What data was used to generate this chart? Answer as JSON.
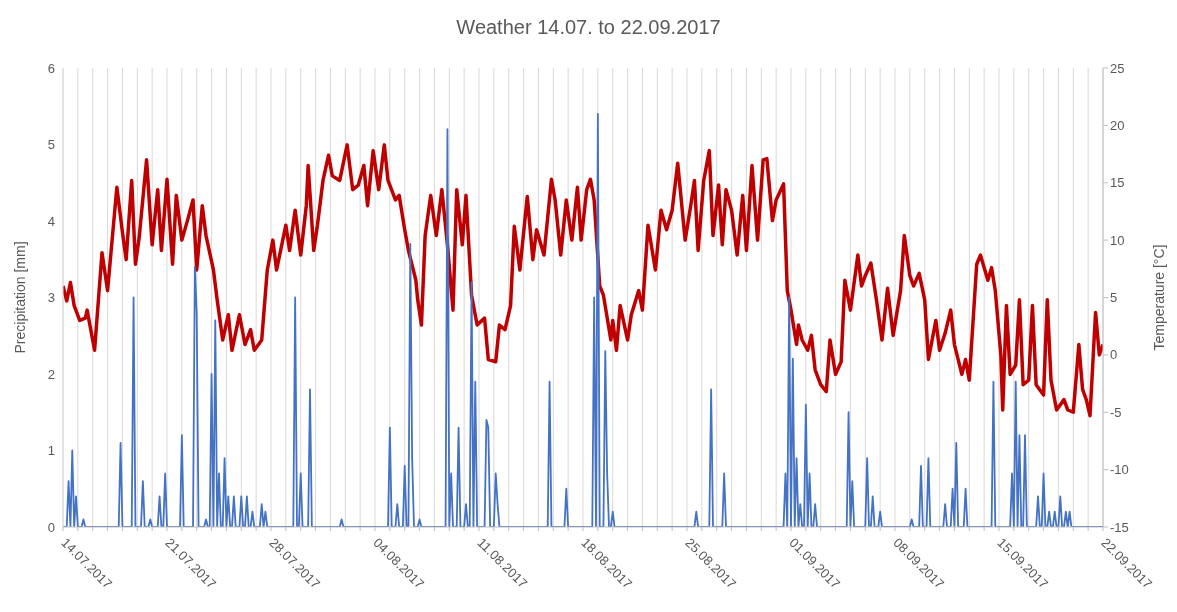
{
  "chart_data": {
    "type": "line",
    "title": "Weather 14.07. to 22.09.2017",
    "ylabel": "Precipitation [mm]",
    "y2label": "Temperature [°C]",
    "xlim": [
      "2017-07-14",
      "2017-09-22"
    ],
    "xticks": [
      {
        "value": "2017-07-14",
        "label": "14.07.2017"
      },
      {
        "value": "2017-07-15",
        "label": null
      },
      {
        "value": "2017-07-16",
        "label": null
      },
      {
        "value": "2017-07-17",
        "label": null
      },
      {
        "value": "2017-07-18",
        "label": null
      },
      {
        "value": "2017-07-19",
        "label": null
      },
      {
        "value": "2017-07-20",
        "label": null
      },
      {
        "value": "2017-07-21",
        "label": "21.07.2017"
      },
      {
        "value": "2017-07-22",
        "label": null
      },
      {
        "value": "2017-07-23",
        "label": null
      },
      {
        "value": "2017-07-24",
        "label": null
      },
      {
        "value": "2017-07-25",
        "label": null
      },
      {
        "value": "2017-07-26",
        "label": null
      },
      {
        "value": "2017-07-27",
        "label": null
      },
      {
        "value": "2017-07-28",
        "label": "28.07.2017"
      },
      {
        "value": "2017-07-29",
        "label": null
      },
      {
        "value": "2017-07-30",
        "label": null
      },
      {
        "value": "2017-07-31",
        "label": null
      },
      {
        "value": "2017-08-01",
        "label": null
      },
      {
        "value": "2017-08-02",
        "label": null
      },
      {
        "value": "2017-08-03",
        "label": null
      },
      {
        "value": "2017-08-04",
        "label": "04.08.2017"
      },
      {
        "value": "2017-08-05",
        "label": null
      },
      {
        "value": "2017-08-06",
        "label": null
      },
      {
        "value": "2017-08-07",
        "label": null
      },
      {
        "value": "2017-08-08",
        "label": null
      },
      {
        "value": "2017-08-09",
        "label": null
      },
      {
        "value": "2017-08-10",
        "label": null
      },
      {
        "value": "2017-08-11",
        "label": "11.08.2017"
      },
      {
        "value": "2017-08-12",
        "label": null
      },
      {
        "value": "2017-08-13",
        "label": null
      },
      {
        "value": "2017-08-14",
        "label": null
      },
      {
        "value": "2017-08-15",
        "label": null
      },
      {
        "value": "2017-08-16",
        "label": null
      },
      {
        "value": "2017-08-17",
        "label": null
      },
      {
        "value": "2017-08-18",
        "label": "18.08.2017"
      },
      {
        "value": "2017-08-19",
        "label": null
      },
      {
        "value": "2017-08-20",
        "label": null
      },
      {
        "value": "2017-08-21",
        "label": null
      },
      {
        "value": "2017-08-22",
        "label": null
      },
      {
        "value": "2017-08-23",
        "label": null
      },
      {
        "value": "2017-08-24",
        "label": null
      },
      {
        "value": "2017-08-25",
        "label": "25.08.2017"
      },
      {
        "value": "2017-08-26",
        "label": null
      },
      {
        "value": "2017-08-27",
        "label": null
      },
      {
        "value": "2017-08-28",
        "label": null
      },
      {
        "value": "2017-08-29",
        "label": null
      },
      {
        "value": "2017-08-30",
        "label": null
      },
      {
        "value": "2017-08-31",
        "label": null
      },
      {
        "value": "2017-09-01",
        "label": "01.09.2017"
      },
      {
        "value": "2017-09-02",
        "label": null
      },
      {
        "value": "2017-09-03",
        "label": null
      },
      {
        "value": "2017-09-04",
        "label": null
      },
      {
        "value": "2017-09-05",
        "label": null
      },
      {
        "value": "2017-09-06",
        "label": null
      },
      {
        "value": "2017-09-07",
        "label": null
      },
      {
        "value": "2017-09-08",
        "label": "08.09.2017"
      },
      {
        "value": "2017-09-09",
        "label": null
      },
      {
        "value": "2017-09-10",
        "label": null
      },
      {
        "value": "2017-09-11",
        "label": null
      },
      {
        "value": "2017-09-12",
        "label": null
      },
      {
        "value": "2017-09-13",
        "label": null
      },
      {
        "value": "2017-09-14",
        "label": null
      },
      {
        "value": "2017-09-15",
        "label": "15.09.2017"
      },
      {
        "value": "2017-09-16",
        "label": null
      },
      {
        "value": "2017-09-17",
        "label": null
      },
      {
        "value": "2017-09-18",
        "label": null
      },
      {
        "value": "2017-09-19",
        "label": null
      },
      {
        "value": "2017-09-20",
        "label": null
      },
      {
        "value": "2017-09-21",
        "label": null
      },
      {
        "value": "2017-09-22",
        "label": "22.09.2017"
      }
    ],
    "ylim": [
      0,
      6
    ],
    "yticks": [
      0,
      1,
      2,
      3,
      4,
      5,
      6
    ],
    "y2lim": [
      -15,
      25
    ],
    "y2ticks": [
      -15,
      -10,
      -5,
      0,
      5,
      10,
      15,
      20,
      25
    ],
    "grid": "x",
    "series": [
      {
        "color": "#c00000",
        "axis": "y2",
        "x": [
          "2017-07-14T00:00",
          "2017-07-14T06:00",
          "2017-07-14T12:00",
          "2017-07-14T18:00",
          "2017-07-15T03:00",
          "2017-07-15T12:00",
          "2017-07-15T15:00",
          "2017-07-16T03:00",
          "2017-07-16T15:00",
          "2017-07-17T00:00",
          "2017-07-17T15:00",
          "2017-07-18T00:00",
          "2017-07-18T06:00",
          "2017-07-18T15:00",
          "2017-07-18T21:00",
          "2017-07-19T03:00",
          "2017-07-19T15:00",
          "2017-07-20T00:00",
          "2017-07-20T09:00",
          "2017-07-20T15:00",
          "2017-07-21T00:00",
          "2017-07-21T09:00",
          "2017-07-21T15:00",
          "2017-07-22T00:00",
          "2017-07-22T09:00",
          "2017-07-22T18:00",
          "2017-07-23T00:00",
          "2017-07-23T09:00",
          "2017-07-23T15:00",
          "2017-07-24T03:00",
          "2017-07-24T09:00",
          "2017-07-24T18:00",
          "2017-07-25T03:00",
          "2017-07-25T09:00",
          "2017-07-25T21:00",
          "2017-07-26T06:00",
          "2017-07-26T15:00",
          "2017-07-26T21:00",
          "2017-07-27T09:00",
          "2017-07-27T18:00",
          "2017-07-28T03:00",
          "2017-07-28T09:00",
          "2017-07-29T00:00",
          "2017-07-29T06:00",
          "2017-07-29T15:00",
          "2017-07-30T00:00",
          "2017-07-30T09:00",
          "2017-07-30T12:00",
          "2017-07-30T21:00",
          "2017-07-31T03:00",
          "2017-07-31T12:00",
          "2017-07-31T21:00",
          "2017-08-01T03:00",
          "2017-08-01T15:00",
          "2017-08-02T03:00",
          "2017-08-02T12:00",
          "2017-08-02T21:00",
          "2017-08-03T06:00",
          "2017-08-03T12:00",
          "2017-08-03T21:00",
          "2017-08-04T06:00",
          "2017-08-04T15:00",
          "2017-08-04T21:00",
          "2017-08-05T09:00",
          "2017-08-05T15:00",
          "2017-08-06T00:00",
          "2017-08-06T06:00",
          "2017-08-06T18:00",
          "2017-08-06T21:00",
          "2017-08-07T03:00",
          "2017-08-07T09:00",
          "2017-08-07T18:00",
          "2017-08-08T03:00",
          "2017-08-08T12:00",
          "2017-08-08T21:00",
          "2017-08-09T06:00",
          "2017-08-09T12:00",
          "2017-08-09T21:00",
          "2017-08-10T03:00",
          "2017-08-10T12:00",
          "2017-08-10T21:00",
          "2017-08-11T09:00",
          "2017-08-11T15:00",
          "2017-08-12T03:00",
          "2017-08-12T09:00",
          "2017-08-12T18:00",
          "2017-08-13T03:00",
          "2017-08-13T09:00",
          "2017-08-13T18:00",
          "2017-08-14T06:00",
          "2017-08-14T15:00",
          "2017-08-14T21:00",
          "2017-08-15T09:00",
          "2017-08-15T21:00",
          "2017-08-16T03:00",
          "2017-08-16T12:00",
          "2017-08-16T21:00",
          "2017-08-17T06:00",
          "2017-08-17T15:00",
          "2017-08-17T21:00",
          "2017-08-18T06:00",
          "2017-08-18T12:00",
          "2017-08-18T18:00",
          "2017-08-19T03:00",
          "2017-08-19T09:00",
          "2017-08-19T21:00",
          "2017-08-20T00:00",
          "2017-08-20T06:00",
          "2017-08-20T12:00",
          "2017-08-21T00:00",
          "2017-08-21T06:00",
          "2017-08-21T18:00",
          "2017-08-22T00:00",
          "2017-08-22T09:00",
          "2017-08-22T21:00",
          "2017-08-23T06:00",
          "2017-08-23T15:00",
          "2017-08-24T00:00",
          "2017-08-24T09:00",
          "2017-08-24T21:00",
          "2017-08-25T06:00",
          "2017-08-25T12:00",
          "2017-08-25T18:00",
          "2017-08-26T03:00",
          "2017-08-26T12:00",
          "2017-08-26T18:00",
          "2017-08-27T03:00",
          "2017-08-27T09:00",
          "2017-08-27T15:00",
          "2017-08-28T00:00",
          "2017-08-28T09:00",
          "2017-08-28T18:00",
          "2017-08-29T00:00",
          "2017-08-29T09:00",
          "2017-08-29T18:00",
          "2017-08-30T03:00",
          "2017-08-30T09:00",
          "2017-08-30T18:00",
          "2017-08-31T00:00",
          "2017-08-31T12:00",
          "2017-08-31T18:00",
          "2017-09-01T00:00",
          "2017-09-01T09:00",
          "2017-09-01T12:00",
          "2017-09-01T18:00",
          "2017-09-02T03:00",
          "2017-09-02T09:00",
          "2017-09-02T15:00",
          "2017-09-03T00:00",
          "2017-09-03T09:00",
          "2017-09-03T15:00",
          "2017-09-04T00:00",
          "2017-09-04T09:00",
          "2017-09-04T15:00",
          "2017-09-05T00:00",
          "2017-09-05T12:00",
          "2017-09-05T18:00",
          "2017-09-06T00:00",
          "2017-09-06T09:00",
          "2017-09-06T18:00",
          "2017-09-07T03:00",
          "2017-09-07T12:00",
          "2017-09-07T21:00",
          "2017-09-08T09:00",
          "2017-09-08T15:00",
          "2017-09-09T00:00",
          "2017-09-09T06:00",
          "2017-09-09T15:00",
          "2017-09-10T00:00",
          "2017-09-10T06:00",
          "2017-09-10T18:00",
          "2017-09-11T00:00",
          "2017-09-11T09:00",
          "2017-09-11T18:00",
          "2017-09-12T00:00",
          "2017-09-12T12:00",
          "2017-09-12T18:00",
          "2017-09-13T00:00",
          "2017-09-13T12:00",
          "2017-09-13T18:00",
          "2017-09-14T06:00",
          "2017-09-14T12:00",
          "2017-09-14T18:00",
          "2017-09-15T03:00",
          "2017-09-15T06:00",
          "2017-09-15T12:00",
          "2017-09-15T18:00",
          "2017-09-16T03:00",
          "2017-09-16T09:00",
          "2017-09-16T15:00",
          "2017-09-17T00:00",
          "2017-09-17T06:00",
          "2017-09-17T12:00",
          "2017-09-18T00:00",
          "2017-09-18T06:00",
          "2017-09-18T12:00",
          "2017-09-18T21:00",
          "2017-09-19T09:00",
          "2017-09-19T15:00",
          "2017-09-20T00:00",
          "2017-09-20T09:00",
          "2017-09-20T15:00",
          "2017-09-20T21:00",
          "2017-09-21T03:00",
          "2017-09-21T12:00",
          "2017-09-21T18:00",
          "2017-09-22T00:00"
        ],
        "values": [
          6.0,
          4.7,
          6.3,
          4.3,
          3.0,
          3.2,
          3.9,
          0.4,
          8.9,
          5.6,
          14.6,
          10.7,
          8.3,
          15.2,
          7.9,
          10.2,
          17.0,
          9.6,
          14.4,
          9.1,
          15.3,
          7.9,
          13.9,
          10,
          11.7,
          13.5,
          7.4,
          13,
          10.4,
          7.4,
          4.8,
          1.3,
          3.5,
          0.4,
          3.5,
          0.9,
          2.2,
          0.4,
          1.3,
          7.4,
          10,
          7.4,
          11.3,
          9.1,
          12.6,
          8.7,
          13,
          16.5,
          9.1,
          11.3,
          15.2,
          17.4,
          15.6,
          15.2,
          18.3,
          14.4,
          14.8,
          16.5,
          13,
          17.8,
          14.4,
          18.3,
          15.2,
          13.5,
          13.9,
          10.9,
          9.1,
          6.5,
          4.8,
          2.6,
          10.4,
          13.9,
          10.4,
          14.4,
          9.6,
          3.9,
          14.4,
          9.6,
          13.9,
          5.2,
          2.6,
          3.2,
          -0.4,
          -0.6,
          2.6,
          2.2,
          4.3,
          11.2,
          7.4,
          13.8,
          8.3,
          10.9,
          8.7,
          15.3,
          13.5,
          8.7,
          13.5,
          10,
          14.6,
          10,
          14.4,
          15.3,
          13.5,
          6.0,
          5.2,
          1.3,
          3.0,
          0.4,
          4.3,
          1.3,
          3.5,
          5.6,
          3.9,
          11.3,
          7.4,
          12.6,
          10.9,
          12.6,
          16.7,
          10,
          13,
          15.2,
          9.1,
          15.2,
          17.8,
          10.4,
          14.8,
          9.6,
          14.4,
          12.6,
          8.7,
          13.9,
          9.1,
          16.5,
          10,
          17,
          17.1,
          11.7,
          13.5,
          14.9,
          5.6,
          3.9,
          0.9,
          2.6,
          1.3,
          0.4,
          1.7,
          -1.3,
          -2.6,
          -3.2,
          1.3,
          -1.7,
          -0.6,
          6.5,
          3.9,
          8.7,
          6.0,
          6.9,
          8.0,
          4.8,
          1.3,
          5.8,
          1.7,
          5.6,
          10.4,
          6.9,
          6.0,
          7.1,
          4.8,
          -0.4,
          3.0,
          0.4,
          1.9,
          3.9,
          0.9,
          -1.7,
          -0.4,
          -2.2,
          7.9,
          8.7,
          6.5,
          7.6,
          5.6,
          0,
          -4.8,
          4.3,
          -1.7,
          -0.9,
          4.8,
          -2.6,
          -2.2,
          4.3,
          -2.6,
          -3.5,
          4.8,
          -2.2,
          -4.8,
          -3.9,
          -4.8,
          -5.0,
          0.9,
          -3.0,
          -3.9,
          -5.3,
          3.7,
          0,
          0.9
        ]
      },
      {
        "color": "#4472c4",
        "x": [
          "2017-07-14T00:00",
          "2017-07-14T06:00",
          "2017-07-14T09:00",
          "2017-07-14T12:00",
          "2017-07-14T15:00",
          "2017-07-14T18:00",
          "2017-07-14T21:00",
          "2017-07-15T00:00",
          "2017-07-15T06:00",
          "2017-07-15T09:00",
          "2017-07-15T12:00",
          "2017-07-17T18:00",
          "2017-07-17T21:00",
          "2017-07-18T00:00",
          "2017-07-18T15:00",
          "2017-07-18T18:00",
          "2017-07-18T21:00",
          "2017-07-19T06:00",
          "2017-07-19T09:00",
          "2017-07-19T12:00",
          "2017-07-19T18:00",
          "2017-07-19T21:00",
          "2017-07-20T00:00",
          "2017-07-20T09:00",
          "2017-07-20T12:00",
          "2017-07-20T15:00",
          "2017-07-20T18:00",
          "2017-07-20T21:00",
          "2017-07-21T00:00",
          "2017-07-21T21:00",
          "2017-07-22T00:00",
          "2017-07-22T03:00",
          "2017-07-22T18:00",
          "2017-07-22T21:00",
          "2017-07-23T00:00",
          "2017-07-23T03:00",
          "2017-07-23T12:00",
          "2017-07-23T15:00",
          "2017-07-23T18:00",
          "2017-07-23T21:00",
          "2017-07-24T00:00",
          "2017-07-24T03:00",
          "2017-07-24T06:00",
          "2017-07-24T09:00",
          "2017-07-24T12:00",
          "2017-07-24T15:00",
          "2017-07-24T18:00",
          "2017-07-24T21:00",
          "2017-07-25T00:00",
          "2017-07-25T03:00",
          "2017-07-25T06:00",
          "2017-07-25T09:00",
          "2017-07-25T12:00",
          "2017-07-25T15:00",
          "2017-07-25T21:00",
          "2017-07-26T00:00",
          "2017-07-26T03:00",
          "2017-07-26T06:00",
          "2017-07-26T09:00",
          "2017-07-26T12:00",
          "2017-07-26T15:00",
          "2017-07-26T18:00",
          "2017-07-26T21:00",
          "2017-07-27T06:00",
          "2017-07-27T09:00",
          "2017-07-27T12:00",
          "2017-07-27T15:00",
          "2017-07-27T18:00",
          "2017-07-29T12:00",
          "2017-07-29T15:00",
          "2017-07-29T18:00",
          "2017-07-29T21:00",
          "2017-07-30T00:00",
          "2017-07-30T03:00",
          "2017-07-30T12:00",
          "2017-07-30T15:00",
          "2017-07-30T18:00",
          "2017-08-01T15:00",
          "2017-08-01T18:00",
          "2017-08-01T21:00",
          "2017-08-04T21:00",
          "2017-08-05T00:00",
          "2017-08-05T03:00",
          "2017-08-05T09:00",
          "2017-08-05T12:00",
          "2017-08-05T15:00",
          "2017-08-05T21:00",
          "2017-08-06T00:00",
          "2017-08-06T03:00",
          "2017-08-06T06:00",
          "2017-08-06T09:00",
          "2017-08-06T12:00",
          "2017-08-06T15:00",
          "2017-08-06T21:00",
          "2017-08-07T00:00",
          "2017-08-07T03:00",
          "2017-08-08T18:00",
          "2017-08-08T21:00",
          "2017-08-09T00:00",
          "2017-08-09T03:00",
          "2017-08-09T06:00",
          "2017-08-09T12:00",
          "2017-08-09T15:00",
          "2017-08-09T18:00",
          "2017-08-10T00:00",
          "2017-08-10T03:00",
          "2017-08-10T06:00",
          "2017-08-10T09:00",
          "2017-08-10T12:00",
          "2017-08-10T15:00",
          "2017-08-10T18:00",
          "2017-08-10T21:00",
          "2017-08-11T09:00",
          "2017-08-11T12:00",
          "2017-08-11T15:00",
          "2017-08-11T18:00",
          "2017-08-12T00:00",
          "2017-08-12T03:00",
          "2017-08-12T06:00",
          "2017-08-12T09:00",
          "2017-08-15T15:00",
          "2017-08-15T18:00",
          "2017-08-15T21:00",
          "2017-08-16T18:00",
          "2017-08-16T21:00",
          "2017-08-17T00:00",
          "2017-08-18T15:00",
          "2017-08-18T18:00",
          "2017-08-18T21:00",
          "2017-08-19T00:00",
          "2017-08-19T03:00",
          "2017-08-19T09:00",
          "2017-08-19T12:00",
          "2017-08-19T15:00",
          "2017-08-19T18:00",
          "2017-08-19T21:00",
          "2017-08-20T00:00",
          "2017-08-20T03:00",
          "2017-08-25T12:00",
          "2017-08-25T15:00",
          "2017-08-25T18:00",
          "2017-08-26T12:00",
          "2017-08-26T15:00",
          "2017-08-26T18:00",
          "2017-08-27T09:00",
          "2017-08-27T12:00",
          "2017-08-27T15:00",
          "2017-08-31T12:00",
          "2017-08-31T15:00",
          "2017-08-31T18:00",
          "2017-08-31T21:00",
          "2017-09-01T00:00",
          "2017-09-01T03:00",
          "2017-09-01T06:00",
          "2017-09-01T09:00",
          "2017-09-01T12:00",
          "2017-09-01T15:00",
          "2017-09-01T18:00",
          "2017-09-01T21:00",
          "2017-09-02T00:00",
          "2017-09-02T03:00",
          "2017-09-02T06:00",
          "2017-09-02T09:00",
          "2017-09-02T12:00",
          "2017-09-02T15:00",
          "2017-09-02T18:00",
          "2017-09-04T18:00",
          "2017-09-04T21:00",
          "2017-09-05T00:00",
          "2017-09-05T03:00",
          "2017-09-05T06:00",
          "2017-09-06T00:00",
          "2017-09-06T03:00",
          "2017-09-06T06:00",
          "2017-09-06T09:00",
          "2017-09-06T12:00",
          "2017-09-06T15:00",
          "2017-09-06T21:00",
          "2017-09-07T00:00",
          "2017-09-07T03:00",
          "2017-09-09T00:00",
          "2017-09-09T03:00",
          "2017-09-09T06:00",
          "2017-09-09T15:00",
          "2017-09-09T18:00",
          "2017-09-09T21:00",
          "2017-09-10T03:00",
          "2017-09-10T06:00",
          "2017-09-10T09:00",
          "2017-09-11T06:00",
          "2017-09-11T09:00",
          "2017-09-11T12:00",
          "2017-09-11T18:00",
          "2017-09-11T21:00",
          "2017-09-12T00:00",
          "2017-09-12T03:00",
          "2017-09-12T06:00",
          "2017-09-12T15:00",
          "2017-09-12T18:00",
          "2017-09-12T21:00",
          "2017-09-14T12:00",
          "2017-09-14T15:00",
          "2017-09-14T18:00",
          "2017-09-15T18:00",
          "2017-09-15T21:00",
          "2017-09-16T00:00",
          "2017-09-16T03:00",
          "2017-09-16T06:00",
          "2017-09-16T09:00",
          "2017-09-16T12:00",
          "2017-09-16T15:00",
          "2017-09-16T18:00",
          "2017-09-16T21:00",
          "2017-09-17T12:00",
          "2017-09-17T15:00",
          "2017-09-17T18:00",
          "2017-09-17T21:00",
          "2017-09-18T00:00",
          "2017-09-18T03:00",
          "2017-09-18T06:00",
          "2017-09-18T09:00",
          "2017-09-18T12:00",
          "2017-09-18T15:00",
          "2017-09-18T18:00",
          "2017-09-18T21:00",
          "2017-09-19T00:00",
          "2017-09-19T03:00",
          "2017-09-19T06:00",
          "2017-09-19T09:00",
          "2017-09-19T12:00",
          "2017-09-19T15:00",
          "2017-09-19T18:00",
          "2017-09-19T21:00",
          "2017-09-22T00:00"
        ],
        "values": [
          0,
          0,
          0.6,
          0,
          1.0,
          0,
          0.4,
          0,
          0,
          0.1,
          0,
          0,
          1.1,
          0,
          0,
          3.0,
          0,
          0,
          0.6,
          0,
          0,
          0.1,
          0,
          0,
          0.4,
          0,
          0,
          0.7,
          0,
          0,
          1.2,
          0,
          0,
          3.4,
          2.8,
          0,
          0,
          0.1,
          0,
          0,
          2.0,
          0,
          2.7,
          0,
          0.7,
          0,
          0,
          0.9,
          0,
          0.4,
          0,
          0,
          0.4,
          0,
          0,
          0.4,
          0,
          0,
          0.4,
          0,
          0,
          0.2,
          0,
          0,
          0.3,
          0,
          0.2,
          0,
          0,
          3.0,
          0,
          0,
          0.7,
          0,
          0,
          1.8,
          0,
          0,
          0.1,
          0,
          0,
          1.3,
          0,
          0,
          0.3,
          0,
          0,
          0.8,
          0,
          0,
          3.7,
          0.9,
          0,
          0,
          0.1,
          0,
          0,
          5.2,
          0,
          0.7,
          0,
          0,
          1.3,
          0,
          0,
          0.3,
          0,
          0,
          3.2,
          0,
          1.9,
          0,
          0,
          1.4,
          1.3,
          0,
          0,
          0.7,
          0.3,
          0,
          0,
          1.9,
          0,
          0,
          0.5,
          0,
          0,
          3.0,
          0,
          5.4,
          0,
          0,
          2.3,
          0.7,
          0,
          0,
          0.2,
          0,
          0,
          0.2,
          0,
          0,
          1.8,
          0,
          0,
          0.7,
          0,
          0,
          0.7,
          0,
          3.0,
          0,
          2.2,
          0,
          0.9,
          0,
          0.3,
          0,
          0,
          1.6,
          0,
          0.7,
          0,
          0,
          0.3,
          0,
          0,
          1.5,
          0,
          0.6,
          0,
          0,
          0.9,
          0,
          0,
          0.4,
          0,
          0,
          0.2,
          0,
          0,
          0.1,
          0,
          0,
          0.8,
          0,
          0,
          0.9,
          0,
          0,
          0.3,
          0,
          0,
          0.5,
          0,
          1.1,
          0,
          0,
          0.5,
          0,
          0,
          1.9,
          0,
          0,
          0.7,
          0,
          1.9,
          0,
          1.2,
          0,
          0,
          1.2,
          0,
          0,
          0.4,
          0,
          0,
          0.7,
          0,
          0,
          0.2,
          0,
          0,
          0.2,
          0,
          0,
          0.4,
          0,
          0,
          0.2,
          0,
          0.2,
          0,
          0
        ]
      }
    ]
  }
}
